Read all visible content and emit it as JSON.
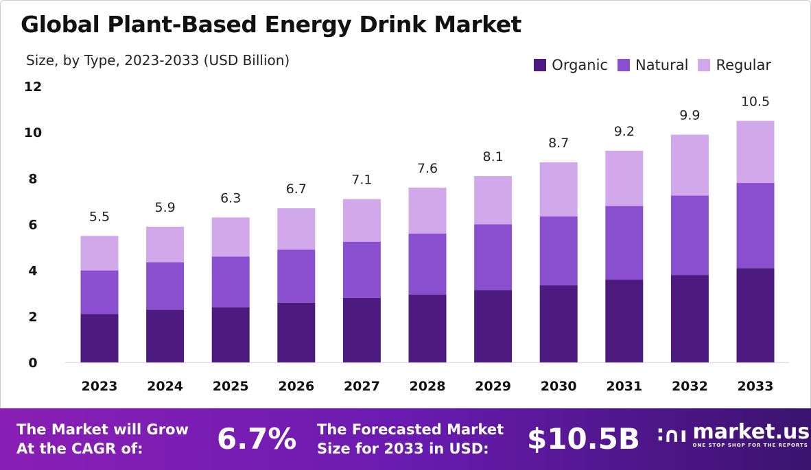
{
  "title": "Global Plant-Based Energy Drink Market",
  "subtitle": "Size, by Type, 2023-2033 (USD Billion)",
  "colors": {
    "Organic": "#4d1a80",
    "Natural": "#8a4fcf",
    "Regular": "#d1a8ea"
  },
  "chart_data": {
    "type": "bar",
    "stacked": true,
    "categories": [
      "2023",
      "2024",
      "2025",
      "2026",
      "2027",
      "2028",
      "2029",
      "2030",
      "2031",
      "2032",
      "2033"
    ],
    "series": [
      {
        "name": "Organic",
        "values": [
          2.1,
          2.3,
          2.4,
          2.6,
          2.8,
          2.95,
          3.15,
          3.35,
          3.6,
          3.8,
          4.1
        ]
      },
      {
        "name": "Natural",
        "values": [
          1.9,
          2.05,
          2.2,
          2.3,
          2.45,
          2.65,
          2.85,
          3.0,
          3.2,
          3.45,
          3.7
        ]
      },
      {
        "name": "Regular",
        "values": [
          1.5,
          1.55,
          1.7,
          1.8,
          1.85,
          2.0,
          2.1,
          2.35,
          2.4,
          2.65,
          2.7
        ]
      }
    ],
    "totals": [
      "5.5",
      "5.9",
      "6.3",
      "6.7",
      "7.1",
      "7.6",
      "8.1",
      "8.7",
      "9.2",
      "9.9",
      "10.5"
    ],
    "yticks": [
      "0",
      "2",
      "4",
      "6",
      "8",
      "10",
      "12"
    ],
    "ylim": [
      0,
      12
    ],
    "grid": false,
    "legend": "top-right"
  },
  "banner": {
    "cagr_label_1": "The Market will Grow",
    "cagr_label_2": "At the CAGR of:",
    "cagr_value": "6.7%",
    "forecast_label_1": "The Forecasted Market",
    "forecast_label_2": "Size for 2033 in USD:",
    "forecast_value": "$10.5B",
    "logo_name": "market.us",
    "logo_tagline": "ONE STOP SHOP FOR THE REPORTS"
  }
}
